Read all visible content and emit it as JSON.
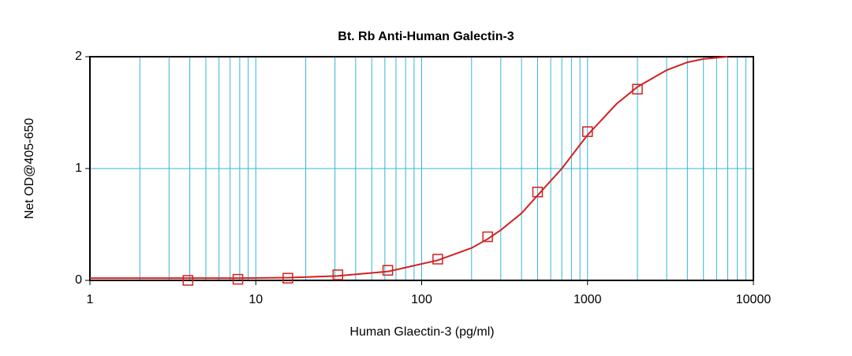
{
  "chart_data": {
    "type": "scatter",
    "title": "Bt. Rb Anti-Human Galectin-3",
    "x_label": "Human Glaectin-3 (pg/ml)",
    "y_label": "Net OD@405-650",
    "xlim": [
      1,
      10000
    ],
    "ylim": [
      0,
      2
    ],
    "xscale": "log",
    "xticks": [
      1,
      10,
      100,
      1000,
      10000
    ],
    "yticks": [
      0,
      1,
      2
    ],
    "xminor_ticks": [
      2,
      3,
      4,
      5,
      6,
      7,
      8,
      9,
      20,
      30,
      40,
      50,
      60,
      70,
      80,
      90,
      200,
      300,
      400,
      500,
      600,
      700,
      800,
      900,
      2000,
      3000,
      4000,
      5000,
      6000,
      7000,
      8000,
      9000
    ],
    "grid": true,
    "grid_color": "#33b5d6",
    "series": [
      {
        "type": "line",
        "color": "#d42020",
        "x": [
          1,
          2,
          4,
          8,
          16,
          31,
          63,
          125,
          200,
          250,
          300,
          400,
          500,
          700,
          1000,
          1500,
          2000,
          3000,
          4000,
          5000,
          7000
        ],
        "values": [
          0.02,
          0.02,
          0.02,
          0.02,
          0.025,
          0.04,
          0.08,
          0.18,
          0.29,
          0.37,
          0.45,
          0.6,
          0.76,
          1.0,
          1.3,
          1.58,
          1.73,
          1.88,
          1.95,
          1.98,
          2.0
        ]
      },
      {
        "type": "scatter",
        "color": "#d42020",
        "x": [
          3.9,
          7.8,
          15.6,
          31.25,
          62.5,
          125,
          250,
          500,
          1000,
          2000
        ],
        "values": [
          0.0,
          0.01,
          0.02,
          0.05,
          0.09,
          0.19,
          0.39,
          0.79,
          1.33,
          1.71
        ]
      }
    ]
  }
}
